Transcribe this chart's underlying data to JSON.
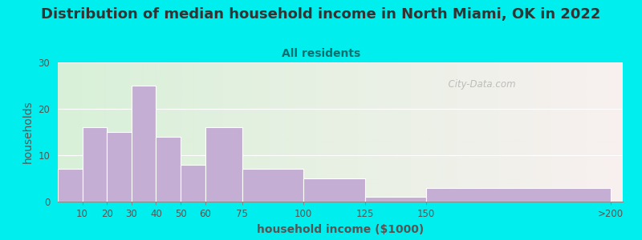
{
  "title": "Distribution of median household income in North Miami, OK in 2022",
  "subtitle": "All residents",
  "xlabel": "household income ($1000)",
  "ylabel": "households",
  "bg_outer": "#00EEEE",
  "bg_inner_left": "#d8f0d8",
  "bg_inner_right": "#f8f0f0",
  "bar_color": "#c4aed4",
  "bar_edge_color": "#ffffff",
  "categories": [
    "10",
    "20",
    "30",
    "40",
    "50",
    "60",
    "75",
    "100",
    "125",
    "150",
    ">200"
  ],
  "values": [
    7,
    16,
    15,
    25,
    14,
    8,
    16,
    7,
    5,
    1,
    3
  ],
  "x_lefts": [
    0,
    10,
    20,
    30,
    40,
    50,
    60,
    75,
    100,
    125,
    150
  ],
  "x_rights": [
    10,
    20,
    30,
    40,
    50,
    60,
    75,
    100,
    125,
    150,
    225
  ],
  "x_ticks": [
    10,
    20,
    30,
    40,
    50,
    60,
    75,
    100,
    125,
    150,
    225
  ],
  "xlim": [
    0,
    230
  ],
  "ylim": [
    0,
    30
  ],
  "yticks": [
    0,
    10,
    20,
    30
  ],
  "watermark": "  City-Data.com",
  "title_fontsize": 13,
  "subtitle_fontsize": 10,
  "axis_label_fontsize": 10,
  "title_color": "#333333",
  "subtitle_color": "#007070",
  "tick_color": "#555555",
  "axis_label_color": "#555555"
}
